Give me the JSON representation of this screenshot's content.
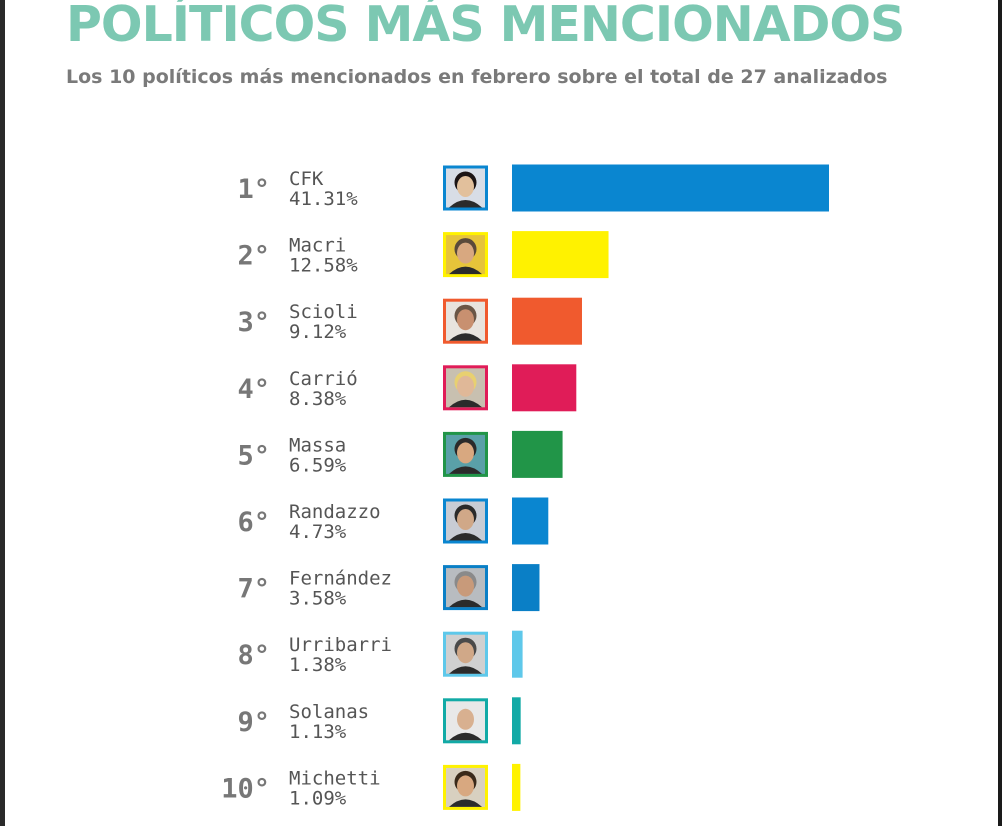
{
  "title": "POLÍTICOS MÁS MENCIONADOS",
  "subtitle": "Los 10 políticos más mencionados en febrero sobre el total de 27 analizados",
  "chart_data": {
    "type": "bar",
    "orientation": "horizontal",
    "title": "POLÍTICOS MÁS MENCIONADOS",
    "subtitle": "Los 10 políticos más mencionados en febrero sobre el total de 27 analizados",
    "xlabel": "",
    "ylabel": "",
    "grid": false,
    "value_suffix": "%",
    "items": [
      {
        "rank": "1°",
        "name": "CFK",
        "label": "41.31%",
        "value": 41.31,
        "color": "#0a86d0",
        "photo_bg": "#d8dde6",
        "skin": "#e2c09c",
        "hair": "#1c1414"
      },
      {
        "rank": "2°",
        "name": "Macri",
        "label": "12.58%",
        "value": 12.58,
        "color": "#fff200",
        "photo_bg": "#e6c43a",
        "skin": "#d8a880",
        "hair": "#5a4a3a"
      },
      {
        "rank": "3°",
        "name": "Scioli",
        "label": "9.12%",
        "value": 9.12,
        "color": "#f05a2e",
        "photo_bg": "#e8e4de",
        "skin": "#c89070",
        "hair": "#6a5646"
      },
      {
        "rank": "4°",
        "name": "Carrió",
        "label": "8.38%",
        "value": 8.38,
        "color": "#e01c58",
        "photo_bg": "#c8c0b0",
        "skin": "#e0b898",
        "hair": "#e8d070"
      },
      {
        "rank": "5°",
        "name": "Massa",
        "label": "6.59%",
        "value": 6.59,
        "color": "#219548",
        "photo_bg": "#5aa0a8",
        "skin": "#d8a880",
        "hair": "#2a2a2a"
      },
      {
        "rank": "6°",
        "name": "Randazzo",
        "label": "4.73%",
        "value": 4.73,
        "color": "#0a86d0",
        "photo_bg": "#c8ccd4",
        "skin": "#d0a888",
        "hair": "#2a2a2a"
      },
      {
        "rank": "7°",
        "name": "Fernández",
        "label": "3.58%",
        "value": 3.58,
        "color": "#0a7fc6",
        "photo_bg": "#b8bcc0",
        "skin": "#c89a7a",
        "hair": "#8a8a8a"
      },
      {
        "rank": "8°",
        "name": "Urribarri",
        "label": "1.38%",
        "value": 1.38,
        "color": "#5ec8ea",
        "photo_bg": "#d0d0d0",
        "skin": "#d0a888",
        "hair": "#4a4a4a"
      },
      {
        "rank": "9°",
        "name": "Solanas",
        "label": "1.13%",
        "value": 1.13,
        "color": "#12aaa6",
        "photo_bg": "#e8e8e8",
        "skin": "#d8b090",
        "hair": "#e8e8e8"
      },
      {
        "rank": "10°",
        "name": "Michetti",
        "label": "1.09%",
        "value": 1.09,
        "color": "#fff200",
        "photo_bg": "#d8d0c0",
        "skin": "#d8a880",
        "hair": "#3a2a1a"
      }
    ]
  }
}
